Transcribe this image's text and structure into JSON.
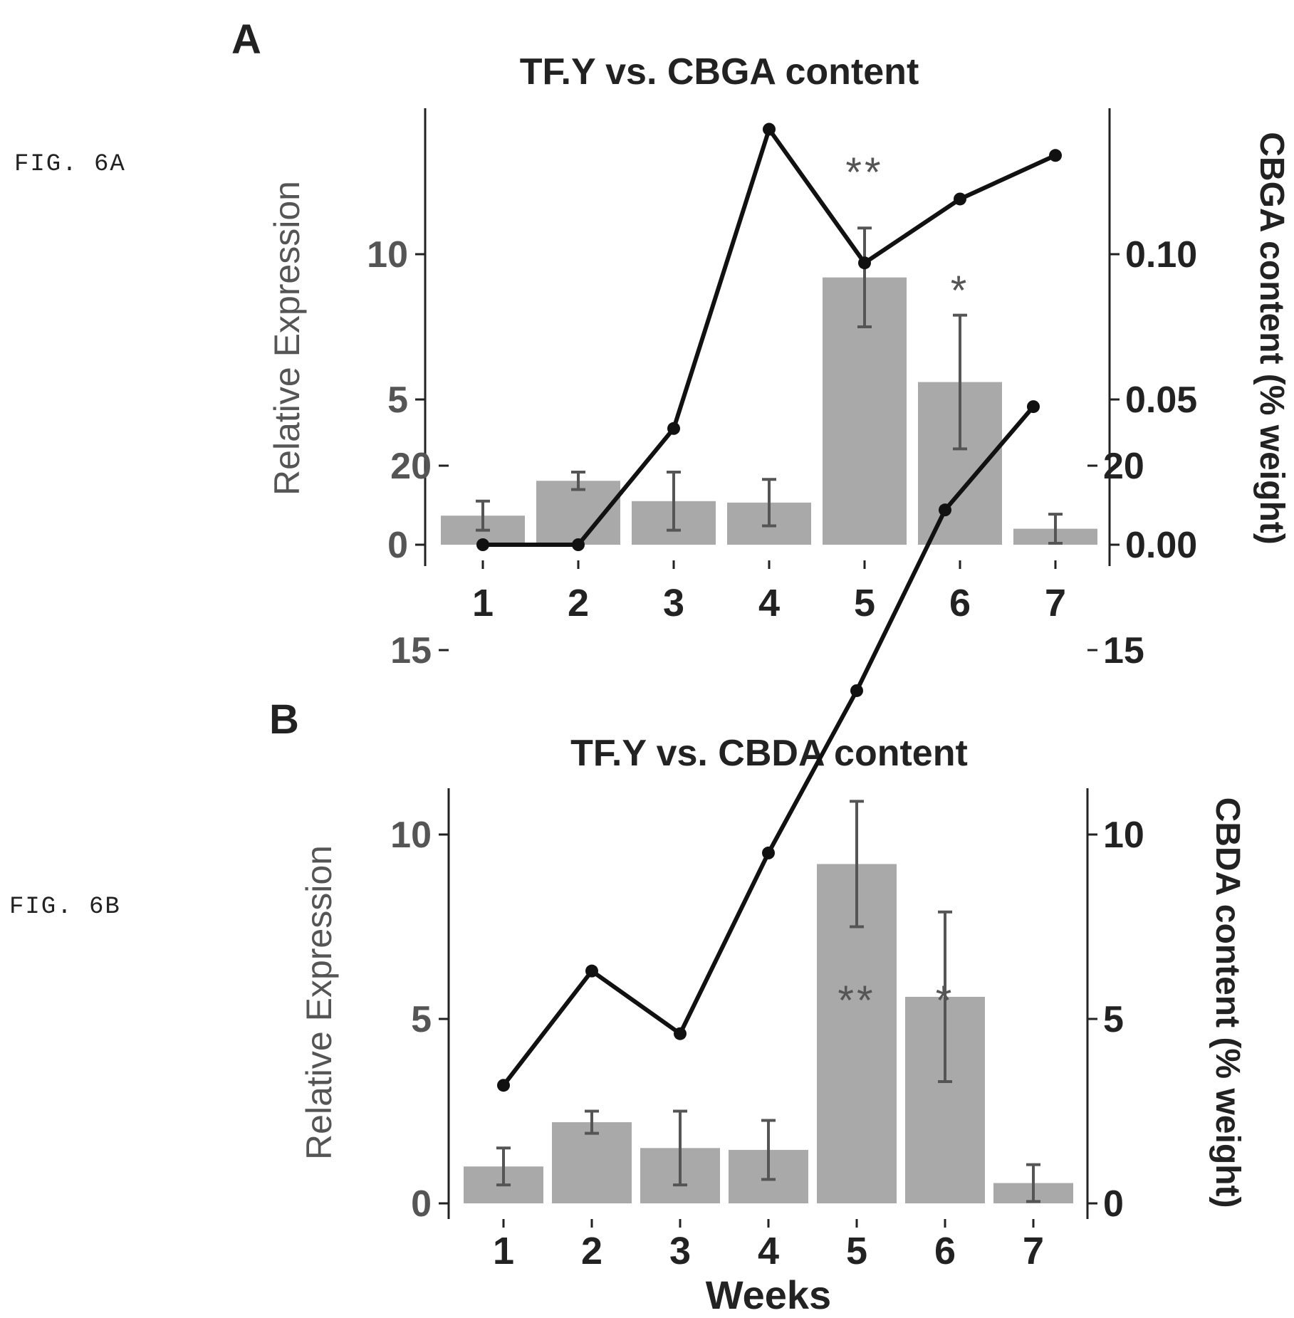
{
  "fig_labels": {
    "a": "FIG. 6A",
    "b": "FIG. 6B"
  },
  "colors": {
    "bar": "#a9a9a9",
    "line": "#111111",
    "axis": "#222222",
    "label": "#555555"
  },
  "chart_data": [
    {
      "panel": "A",
      "type": "bar",
      "title": "TF.Y vs. CBGA content",
      "xlabel": "",
      "ylabel": "Relative Expression",
      "y2label": "CBGA content (% weight)",
      "categories": [
        "1",
        "2",
        "3",
        "4",
        "5",
        "6",
        "7"
      ],
      "ylim": [
        0,
        14.4
      ],
      "yticks": [
        0,
        5,
        10
      ],
      "y2lim": [
        0,
        0.144
      ],
      "y2ticks": [
        "0.00",
        "0.05",
        "0.10"
      ],
      "series": [
        {
          "type": "bar",
          "axis": "left",
          "values": [
            1.0,
            2.2,
            1.5,
            1.45,
            9.2,
            5.6,
            0.55
          ],
          "err": [
            0.5,
            0.3,
            1.0,
            0.8,
            1.7,
            2.3,
            0.5
          ]
        },
        {
          "type": "line",
          "axis": "right",
          "values": [
            0.0,
            0.0,
            0.04,
            0.143,
            0.097,
            0.119,
            0.134
          ]
        }
      ],
      "annotations": [
        {
          "category": "5",
          "text": "**"
        },
        {
          "category": "6",
          "text": "*"
        }
      ]
    },
    {
      "panel": "B",
      "type": "bar",
      "title": "TF.Y vs. CBDA content",
      "xlabel": "Weeks",
      "ylabel": "Relative Expression",
      "y2label": "CBDA content (% weight)",
      "categories": [
        "1",
        "2",
        "3",
        "4",
        "5",
        "6",
        "7"
      ],
      "ylim": [
        0,
        22.4
      ],
      "yticks": [
        0,
        5,
        10,
        15,
        20
      ],
      "y2lim": [
        0,
        22.4
      ],
      "y2ticks": [
        "0",
        "5",
        "10",
        "15",
        "20"
      ],
      "series": [
        {
          "type": "bar",
          "axis": "left",
          "values": [
            1.0,
            2.2,
            1.5,
            1.45,
            9.2,
            5.6,
            0.55
          ],
          "err": [
            0.5,
            0.3,
            1.0,
            0.8,
            1.7,
            2.3,
            0.5
          ]
        },
        {
          "type": "line",
          "axis": "right",
          "values": [
            3.2,
            6.3,
            4.6,
            9.5,
            13.9,
            18.8,
            21.6
          ]
        }
      ],
      "annotations": [
        {
          "category": "5",
          "text": "**"
        },
        {
          "category": "6",
          "text": "*"
        }
      ]
    }
  ]
}
